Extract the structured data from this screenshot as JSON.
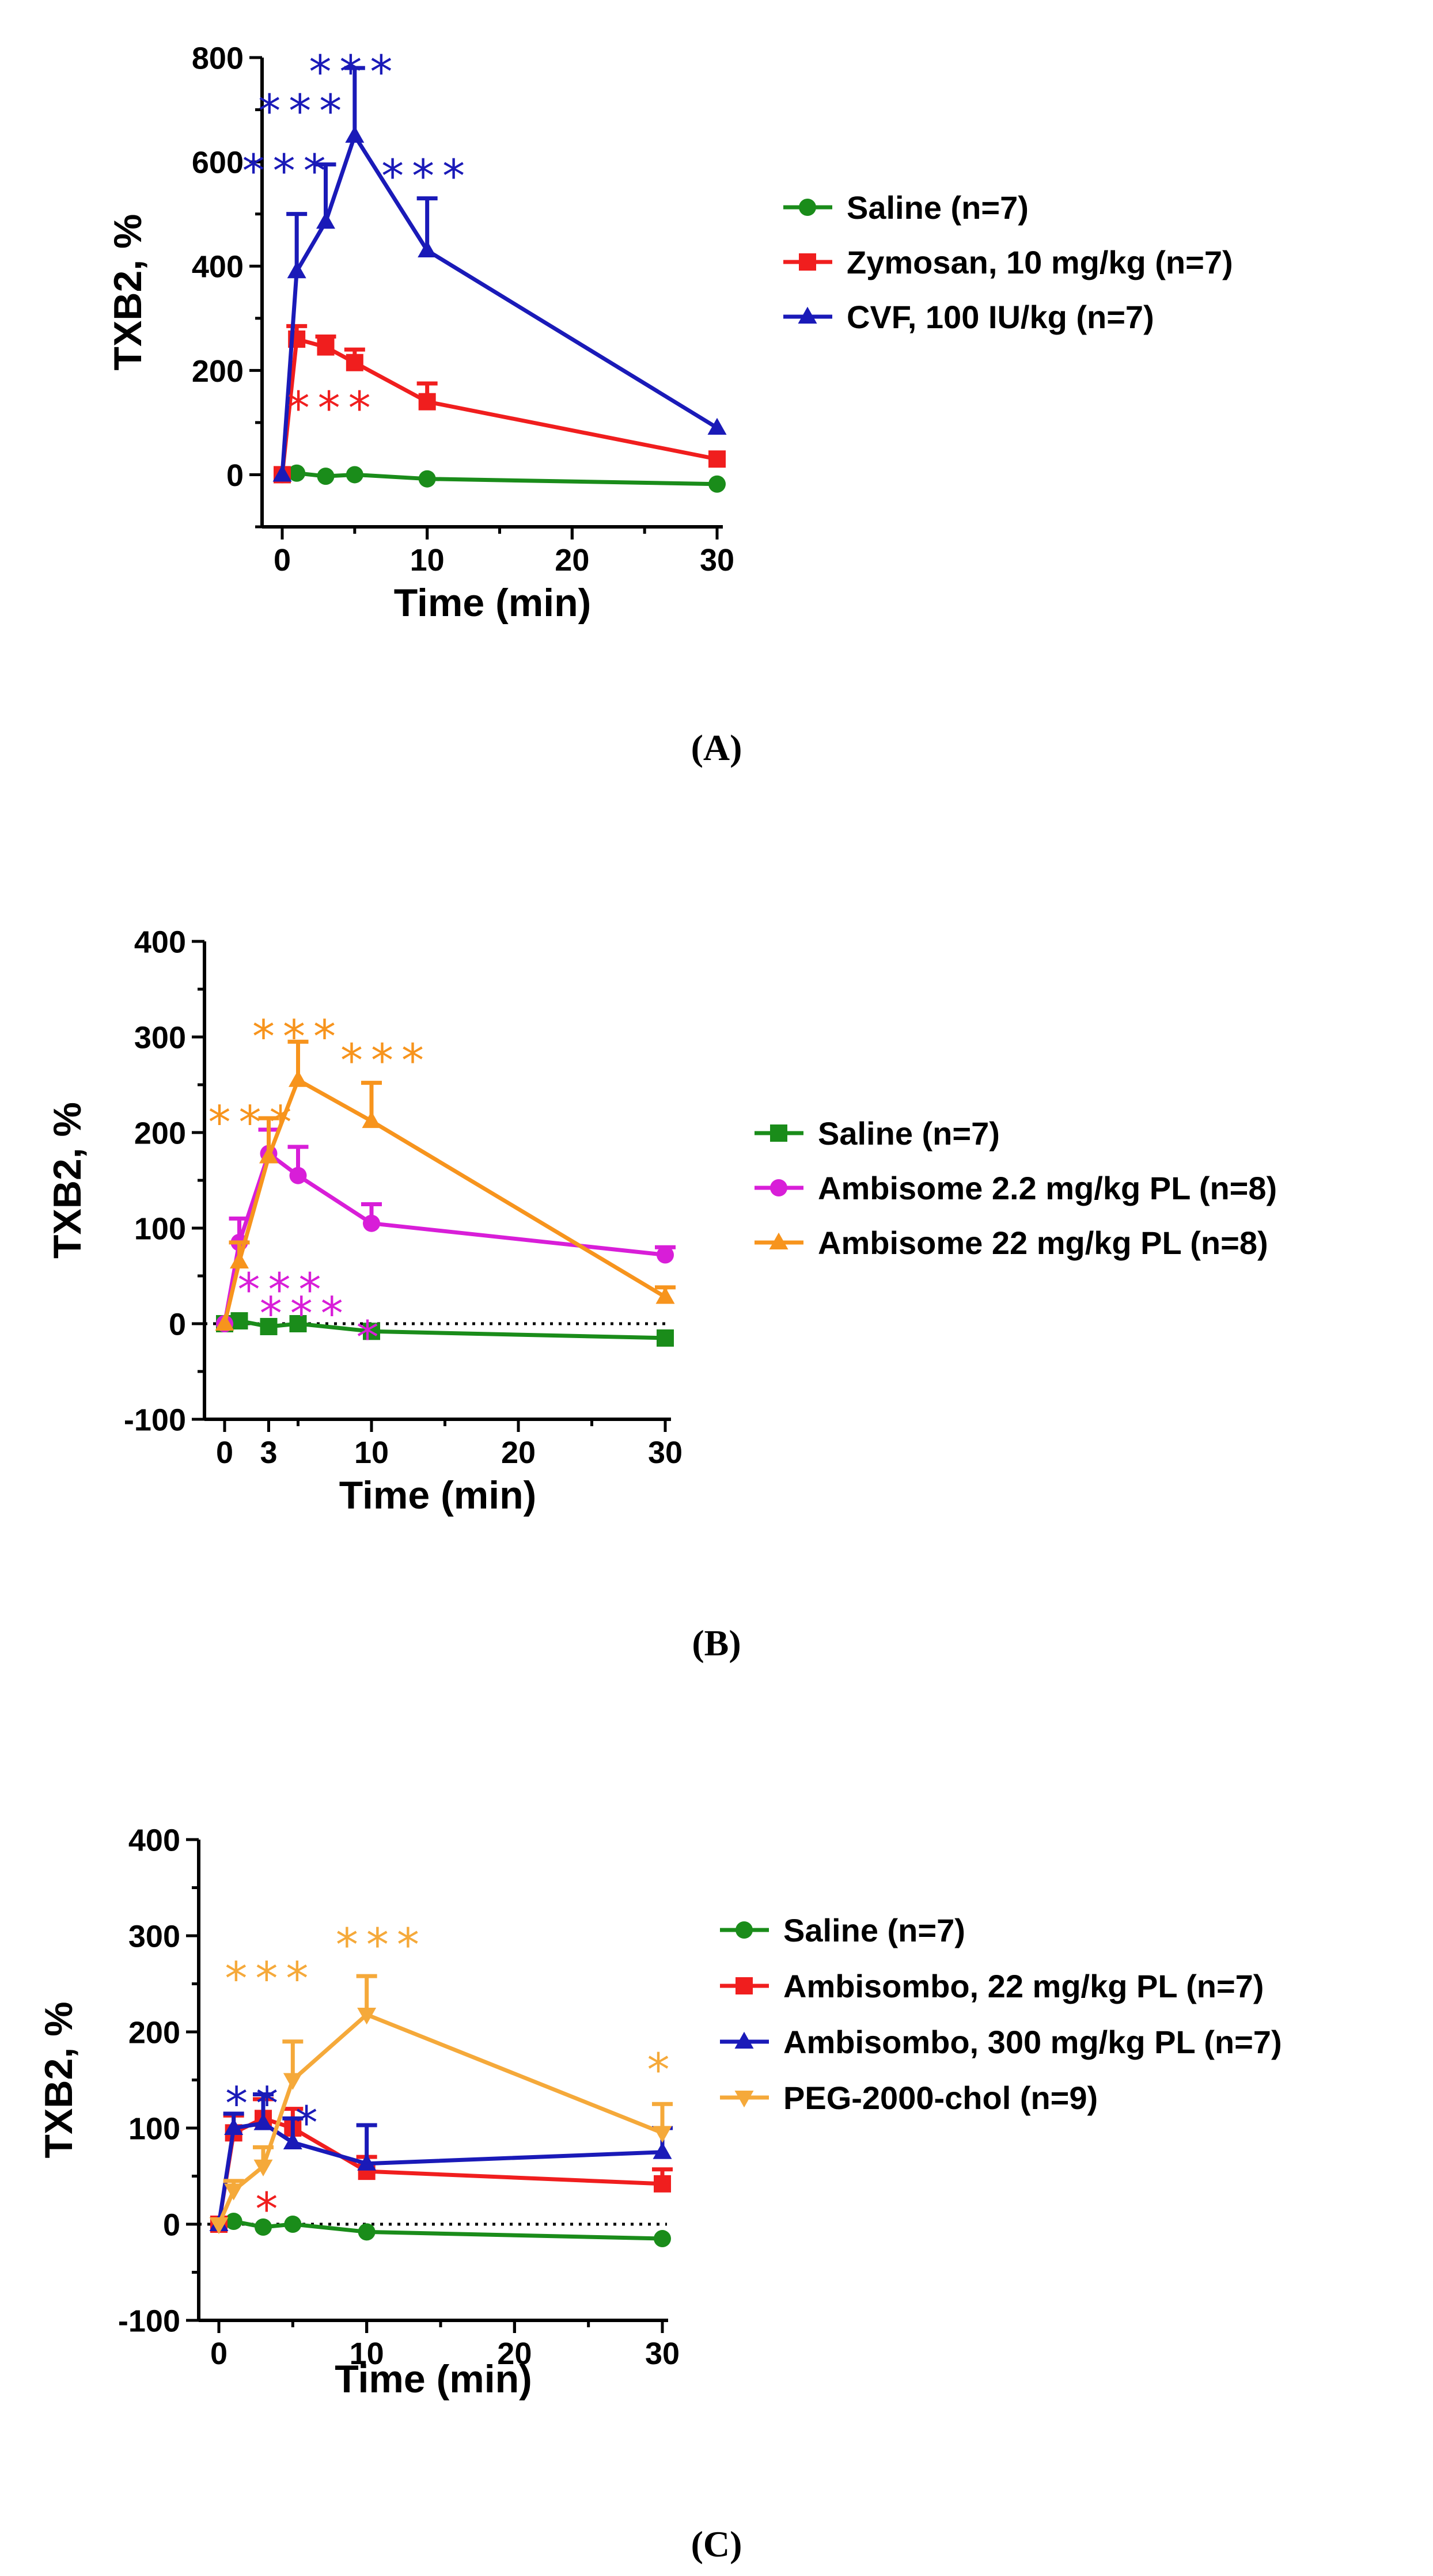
{
  "chart_data": [
    {
      "panel_label": "(A)",
      "type": "line",
      "ylabel": "TXB2, %",
      "xlabel": "Time (min)",
      "xlim": [
        0,
        30
      ],
      "ylim": [
        -100,
        800
      ],
      "x_ticks": [
        "0",
        "10",
        "20",
        "30"
      ],
      "y_ticks": [
        "0",
        "200",
        "400",
        "600",
        "800"
      ],
      "reference_line_y0": false,
      "legend_position": "right",
      "series": [
        {
          "name": "Saline (n=7)",
          "color": "#1a8c1a",
          "marker": "circle",
          "x": [
            0,
            1,
            3,
            5,
            10,
            30
          ],
          "y": [
            0,
            3,
            -3,
            0,
            -8,
            -18
          ],
          "err": [
            0,
            0,
            0,
            0,
            0,
            0
          ]
        },
        {
          "name": "Zymosan, 10 mg/kg (n=7)",
          "color": "#f01e1e",
          "marker": "square",
          "x": [
            0,
            1,
            3,
            5,
            10,
            30
          ],
          "y": [
            0,
            260,
            245,
            215,
            140,
            30
          ],
          "err": [
            0,
            25,
            20,
            25,
            35,
            0
          ]
        },
        {
          "name": "CVF, 100 IU/kg (n=7)",
          "color": "#1a1ab8",
          "marker": "triangle",
          "x": [
            0,
            1,
            3,
            5,
            10,
            30
          ],
          "y": [
            0,
            390,
            485,
            650,
            430,
            90
          ],
          "err": [
            0,
            110,
            110,
            130,
            100,
            0
          ]
        }
      ],
      "annotations": [
        {
          "text": "***",
          "color": "#1a1ab8",
          "x": 5,
          "y": 790
        },
        {
          "text": "***",
          "color": "#1a1ab8",
          "x": 1.5,
          "y": 715
        },
        {
          "text": "***",
          "color": "#1a1ab8",
          "x": 0.4,
          "y": 600
        },
        {
          "text": "***",
          "color": "#1a1ab8",
          "x": 10,
          "y": 590
        },
        {
          "text": "***",
          "color": "#f01e1e",
          "x": 3.5,
          "y": 145
        }
      ]
    },
    {
      "panel_label": "(B)",
      "type": "line",
      "ylabel": "TXB2, %",
      "xlabel": "Time (min)",
      "xlim": [
        0,
        30
      ],
      "ylim": [
        -100,
        400
      ],
      "x_ticks": [
        "0",
        "3",
        "10",
        "20",
        "30"
      ],
      "y_ticks": [
        "-100",
        "0",
        "100",
        "200",
        "300",
        "400"
      ],
      "reference_line_y0": true,
      "legend_position": "right",
      "series": [
        {
          "name": "Saline (n=7)",
          "color": "#1a8c1a",
          "marker": "square",
          "x": [
            0,
            1,
            3,
            5,
            10,
            30
          ],
          "y": [
            0,
            3,
            -3,
            0,
            -8,
            -15
          ],
          "err": [
            0,
            0,
            0,
            0,
            0,
            0
          ]
        },
        {
          "name": "Ambisome 2.2 mg/kg PL (n=8)",
          "color": "#d81ed8",
          "marker": "circle",
          "x": [
            0,
            1,
            3,
            5,
            10,
            30
          ],
          "y": [
            0,
            85,
            178,
            155,
            105,
            72
          ],
          "err": [
            0,
            25,
            25,
            30,
            20,
            8
          ]
        },
        {
          "name": "Ambisome 22 mg/kg PL (n=8)",
          "color": "#f7941d",
          "marker": "triangle",
          "x": [
            0,
            1,
            3,
            5,
            10,
            30
          ],
          "y": [
            0,
            65,
            175,
            255,
            212,
            28
          ],
          "err": [
            0,
            20,
            40,
            40,
            40,
            10
          ]
        }
      ],
      "annotations": [
        {
          "text": "***",
          "color": "#f7941d",
          "x": 5,
          "y": 310
        },
        {
          "text": "***",
          "color": "#f7941d",
          "x": 11,
          "y": 285
        },
        {
          "text": "***",
          "color": "#f7941d",
          "x": 2,
          "y": 220
        },
        {
          "text": "***",
          "color": "#d81ed8",
          "x": 4,
          "y": 45
        },
        {
          "text": "***",
          "color": "#d81ed8",
          "x": 5.5,
          "y": 20
        },
        {
          "text": "*",
          "color": "#d81ed8",
          "x": 10,
          "y": -5
        }
      ]
    },
    {
      "panel_label": "(C)",
      "type": "line",
      "ylabel": "TXB2, %",
      "xlabel": "Time (min)",
      "xlim": [
        0,
        30
      ],
      "ylim": [
        -100,
        400
      ],
      "x_ticks": [
        "0",
        "10",
        "20",
        "30"
      ],
      "y_ticks": [
        "-100",
        "0",
        "100",
        "200",
        "300",
        "400"
      ],
      "reference_line_y0": true,
      "legend_position": "right",
      "series": [
        {
          "name": "Saline (n=7)",
          "color": "#1a8c1a",
          "marker": "circle",
          "x": [
            0,
            1,
            3,
            5,
            10,
            30
          ],
          "y": [
            0,
            3,
            -3,
            0,
            -8,
            -15
          ],
          "err": [
            0,
            0,
            0,
            0,
            0,
            0
          ]
        },
        {
          "name": "Ambisombo, 22 mg/kg PL (n=7)",
          "color": "#f01e1e",
          "marker": "square",
          "x": [
            0,
            1,
            3,
            5,
            10,
            30
          ],
          "y": [
            0,
            95,
            110,
            100,
            55,
            42
          ],
          "err": [
            0,
            18,
            20,
            20,
            15,
            15
          ]
        },
        {
          "name": "Ambisombo, 300 mg/kg PL (n=7)",
          "color": "#1a1ab8",
          "marker": "triangle",
          "x": [
            0,
            1,
            3,
            5,
            10,
            30
          ],
          "y": [
            0,
            100,
            105,
            85,
            63,
            75
          ],
          "err": [
            0,
            15,
            30,
            25,
            40,
            25
          ]
        },
        {
          "name": "PEG-2000-chol (n=9)",
          "color": "#f5a93a",
          "marker": "triangle-down",
          "x": [
            0,
            1,
            3,
            5,
            10,
            30
          ],
          "y": [
            0,
            35,
            60,
            150,
            218,
            95
          ],
          "err": [
            0,
            10,
            20,
            40,
            40,
            30
          ]
        }
      ],
      "annotations": [
        {
          "text": "**",
          "color": "#1a1ab8",
          "x": 2.5,
          "y": 135
        },
        {
          "text": "*",
          "color": "#1a1ab8",
          "x": 6.2,
          "y": 115
        },
        {
          "text": "***",
          "color": "#f5a93a",
          "x": 3.5,
          "y": 265
        },
        {
          "text": "***",
          "color": "#f5a93a",
          "x": 11,
          "y": 300
        },
        {
          "text": "*",
          "color": "#f5a93a",
          "x": 30,
          "y": 170
        },
        {
          "text": "*",
          "color": "#f01e1e",
          "x": 3.5,
          "y": 25
        }
      ]
    }
  ]
}
